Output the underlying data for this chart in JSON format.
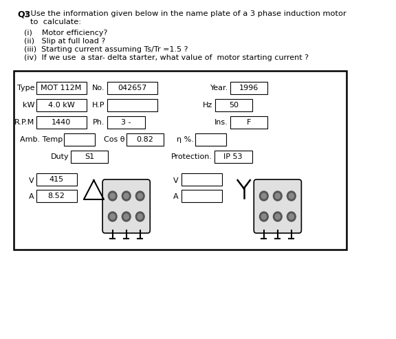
{
  "title_bold": "Q3",
  "title_text": " : Use the information given below in the name plate of a 3 phase induction motor\n      to  calculate:",
  "items": [
    "(i)    Motor efficiency?",
    "(ii)   Slip at full load ?",
    "(iii)  Starting current assuming Ts/Tr =1.5 ?",
    "(iv)  If we use  a star- delta starter, what value of  motor starting current ?"
  ],
  "nameplate": {
    "row1": {
      "Type": "MOT 112M",
      "No.": "042657",
      "Year.": "1996"
    },
    "row2": {
      "kW": "4.0 kW",
      "H.P": "",
      "Hz": "50"
    },
    "row3": {
      "R.P.M": "1440",
      "Ph.": "3 -",
      "Ins.": "F"
    },
    "row4": {
      "Amb. Temp": "",
      "Cos θ": "0.82",
      "η %.": ""
    },
    "row5": {
      "Duty": "S1",
      "Protection.": "IP 53"
    },
    "row6": {
      "V": "415",
      "A": "8.52"
    }
  },
  "bg_color": "#ffffff",
  "text_color": "#000000",
  "box_color": "#000000",
  "plate_bg": "#f5f5f5"
}
